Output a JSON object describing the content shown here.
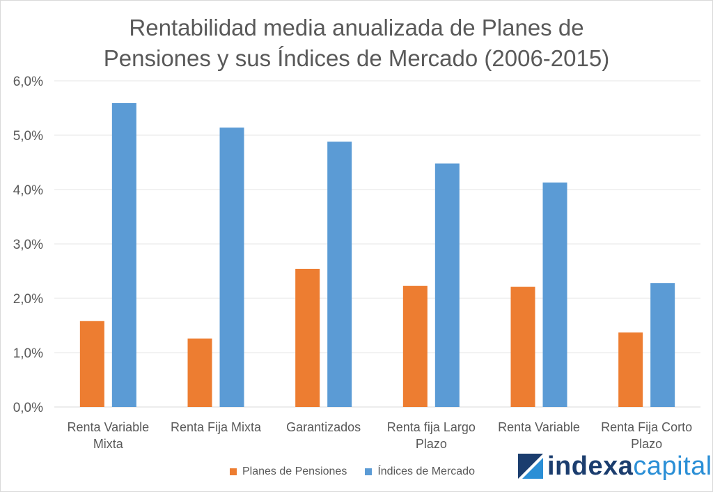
{
  "chart_data": {
    "type": "bar",
    "title": [
      "Rentabilidad media anualizada de Planes de",
      "Pensiones y sus Índices de Mercado (2006-2015)"
    ],
    "categories": [
      [
        "Renta Variable",
        "Mixta"
      ],
      [
        "Renta Fija Mixta"
      ],
      [
        "Garantizados"
      ],
      [
        "Renta fija Largo",
        "Plazo"
      ],
      [
        "Renta Variable"
      ],
      [
        "Renta Fija Corto",
        "Plazo"
      ]
    ],
    "series": [
      {
        "name": "Planes de Pensiones",
        "color": "#ed7d31",
        "values": [
          1.58,
          1.26,
          2.54,
          2.23,
          2.21,
          1.37
        ]
      },
      {
        "name": "Índices de Mercado",
        "color": "#5b9bd5",
        "values": [
          5.59,
          5.14,
          4.88,
          4.48,
          4.13,
          2.28
        ]
      }
    ],
    "ylim": [
      0,
      6
    ],
    "yticks": [
      "0,0%",
      "1,0%",
      "2,0%",
      "3,0%",
      "4,0%",
      "5,0%",
      "6,0%"
    ],
    "grid": true,
    "legend_position": "bottom"
  },
  "branding": {
    "logo_part1": "indexa",
    "logo_part2": "capital",
    "logo_icon": "indexa-logo-mark-icon"
  }
}
